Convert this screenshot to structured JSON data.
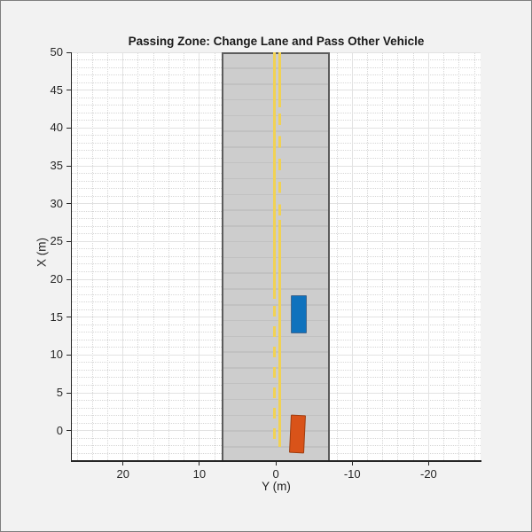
{
  "figure": {
    "background_color": "#f2f2f2",
    "plot_background_color": "#ffffff",
    "axis_color": "#262626",
    "grid_major_color": "#e2e2e2",
    "grid_minor_color": "#d6d6d6"
  },
  "chart_data": {
    "type": "scatter",
    "title": "Passing Zone: Change Lane and Pass Other Vehicle",
    "xlabel": "Y (m)",
    "ylabel": "X (m)",
    "x_axis": {
      "label": "Y (m)",
      "ticks": [
        20,
        10,
        0,
        -10,
        -20
      ],
      "range": [
        26.7,
        -26.8
      ],
      "reversed": true,
      "major_step": 10,
      "minor_step": 2
    },
    "y_axis": {
      "label": "X (m)",
      "ticks": [
        0,
        5,
        10,
        15,
        20,
        25,
        30,
        35,
        40,
        45,
        50
      ],
      "range": [
        -3.9,
        50
      ],
      "major_step": 5,
      "minor_step": 1
    },
    "grid": {
      "major": true,
      "minor": true
    },
    "road": {
      "fill_color": "#cdcdcd",
      "edge_color": "#5c5c5c",
      "mesh_color": "#c1c1c1",
      "lateral_extent_m": [
        7.1,
        -7.1
      ],
      "longitudinal_extent_m": [
        -3.9,
        50
      ],
      "mesh_interval_m": 2.084
    },
    "lane_markings": [
      {
        "name": "center-line-left",
        "color": "#f1d254",
        "offset_m": 0.17,
        "dash_m": 1.4,
        "gap_m": 1.3,
        "segments": [
          {
            "style": "solid",
            "from_m": 17.4,
            "to_m": 50.0
          },
          {
            "style": "dashed",
            "from_m": -2.0,
            "to_m": 16.5
          }
        ]
      },
      {
        "name": "center-line-right",
        "color": "#f1d254",
        "offset_m": -0.46,
        "dash_m": 1.5,
        "gap_m": 1.5,
        "segments": [
          {
            "style": "solid",
            "from_m": 42.7,
            "to_m": 50.0
          },
          {
            "style": "dashed",
            "from_m": 28.0,
            "to_m": 41.9
          },
          {
            "style": "solid",
            "from_m": -2.1,
            "to_m": 27.9
          }
        ]
      }
    ],
    "vehicles": [
      {
        "name": "vehicle-blue",
        "center_lateral_y_m": -3.0,
        "center_longitudinal_x_m": 15.4,
        "width_m": 2.1,
        "length_m": 5.0,
        "heading_deg": 0,
        "fill_color": "#0f72bd",
        "edge_color": "#44688e"
      },
      {
        "name": "vehicle-orange",
        "center_lateral_y_m": -2.9,
        "center_longitudinal_x_m": -0.45,
        "width_m": 2.0,
        "length_m": 5.0,
        "heading_deg": 2.7,
        "fill_color": "#d95319",
        "edge_color": "#9e3d10"
      }
    ]
  }
}
